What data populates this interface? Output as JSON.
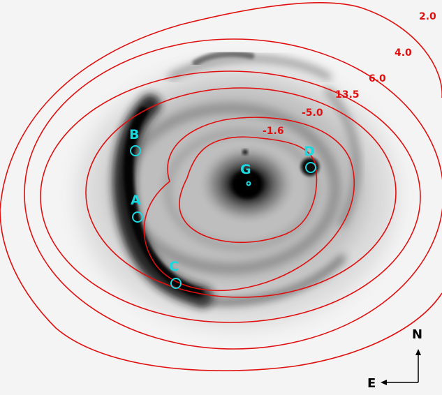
{
  "image_labels": {
    "a": "A",
    "b": "B",
    "c": "C",
    "d": "D",
    "g": "G"
  },
  "contour_labels": {
    "c1": "2.0",
    "c2": "4.0",
    "c3": "6.0",
    "c4": "13.5",
    "c5": "-5.0",
    "c6": "-1.6"
  },
  "compass": {
    "north": "N",
    "east": "E"
  },
  "colors": {
    "contour": "#e01010",
    "marker": "#19d9e0",
    "sky": "#f4f4f4"
  }
}
